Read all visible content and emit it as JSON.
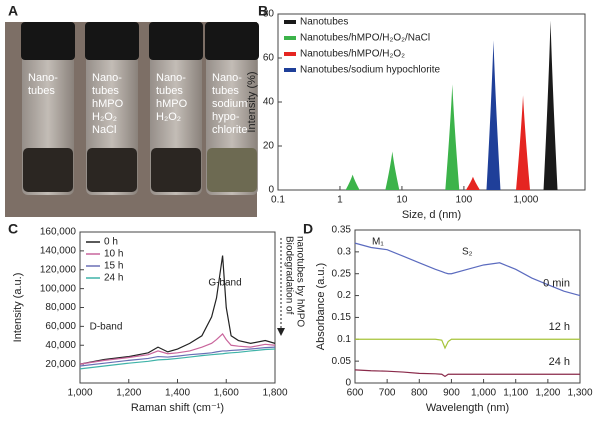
{
  "photo": {
    "panel_label": "A",
    "vials": [
      [
        "Nano-",
        "tubes"
      ],
      [
        "Nano-",
        "tubes",
        "hMPO",
        "H₂O₂",
        "NaCl"
      ],
      [
        "Nano-",
        "tubes",
        "hMPO",
        "H₂O₂"
      ],
      [
        "Nano-",
        "tubes",
        "sodium",
        "hypo-",
        "chlorite"
      ]
    ]
  },
  "chart_data": [
    {
      "type": "peaks",
      "panel_label": "B",
      "xlabel": "Size, d (nm)",
      "ylabel": "Intensity (%)",
      "xscale": "log",
      "xlim": [
        0.1,
        9000
      ],
      "ylim": [
        0,
        80
      ],
      "xticks": [
        0.1,
        1,
        10,
        100,
        {
          "value": 1000,
          "label": "1,000"
        }
      ],
      "yticks": [
        0,
        20,
        40,
        60,
        80
      ],
      "series": [
        {
          "name": "Nanotubes",
          "color": "#1a1a1a",
          "x": [
            2500
          ],
          "values": [
            77
          ]
        },
        {
          "name": "Nanotubes/hMPO/H₂O₂/NaCl",
          "color": "#3cb34a",
          "x": [
            1.6,
            7,
            65
          ],
          "values": [
            7,
            17.5,
            48
          ]
        },
        {
          "name": "Nanotubes/hMPO/H₂O₂",
          "color": "#e52521",
          "x": [
            140,
            900
          ],
          "values": [
            6,
            43
          ]
        },
        {
          "name": "Nanotubes/sodium hypochlorite",
          "color": "#1f3f99",
          "x": [
            300
          ],
          "values": [
            68
          ]
        }
      ]
    },
    {
      "type": "line",
      "panel_label": "C",
      "xlabel": "Raman shift (cm⁻¹)",
      "ylabel": "Intensity (a.u.)",
      "annotations": [
        "G-band",
        "D-band"
      ],
      "side_note": [
        "Biodegradation of",
        "nanotubes by hMPO"
      ],
      "xlim": [
        1000,
        1800
      ],
      "ylim": [
        0,
        160000
      ],
      "xticks": [
        {
          "value": 1000,
          "label": "1,000"
        },
        {
          "value": 1200,
          "label": "1,200"
        },
        {
          "value": 1400,
          "label": "1,400"
        },
        {
          "value": 1600,
          "label": "1,600"
        },
        {
          "value": 1800,
          "label": "1,800"
        }
      ],
      "yticks": [
        {
          "value": 20000,
          "label": "20,000"
        },
        {
          "value": 40000,
          "label": "40,000"
        },
        {
          "value": 60000,
          "label": "60,000"
        },
        {
          "value": 80000,
          "label": "80,000"
        },
        {
          "value": 100000,
          "label": "100,000"
        },
        {
          "value": 120000,
          "label": "120,000"
        },
        {
          "value": 140000,
          "label": "140,000"
        },
        {
          "value": 160000,
          "label": "160,000"
        }
      ],
      "x": [
        1000,
        1100,
        1200,
        1280,
        1320,
        1360,
        1400,
        1450,
        1500,
        1540,
        1560,
        1585,
        1600,
        1620,
        1650,
        1700,
        1760,
        1800
      ],
      "series": [
        {
          "name": "0 h",
          "color": "#222222",
          "values": [
            20000,
            25000,
            28000,
            32000,
            38000,
            33000,
            36000,
            42000,
            50000,
            70000,
            90000,
            135000,
            80000,
            50000,
            45000,
            42000,
            45000,
            42000
          ]
        },
        {
          "name": "10 h",
          "color": "#c9659c",
          "values": [
            20000,
            24000,
            27000,
            30000,
            34000,
            31000,
            32000,
            34000,
            38000,
            42000,
            46000,
            52000,
            46000,
            40000,
            39000,
            38000,
            41000,
            40000
          ]
        },
        {
          "name": "15 h",
          "color": "#6a6fb5",
          "values": [
            18000,
            21000,
            24000,
            26000,
            28000,
            27500,
            28500,
            30000,
            31000,
            32000,
            33000,
            34000,
            34000,
            34500,
            35000,
            36000,
            37500,
            38000
          ]
        },
        {
          "name": "24 h",
          "color": "#3fb3a8",
          "values": [
            15000,
            18000,
            21000,
            23000,
            24500,
            25000,
            26000,
            27500,
            29000,
            30000,
            30500,
            31000,
            31500,
            32000,
            32500,
            34000,
            35500,
            36000
          ]
        }
      ]
    },
    {
      "type": "line",
      "panel_label": "D",
      "xlabel": "Wavelength (nm)",
      "ylabel": "Absorbance (a.u.)",
      "annotations": [
        "M₁",
        "S₂"
      ],
      "xlim": [
        600,
        1300
      ],
      "ylim": [
        0,
        0.35
      ],
      "xticks": [
        600,
        700,
        800,
        900,
        {
          "value": 1000,
          "label": "1,000"
        },
        {
          "value": 1100,
          "label": "1,100"
        },
        {
          "value": 1200,
          "label": "1,200"
        },
        {
          "value": 1300,
          "label": "1,300"
        }
      ],
      "yticks": [
        0,
        0.05,
        0.1,
        0.15,
        0.2,
        0.25,
        0.3,
        0.35
      ],
      "x": [
        600,
        650,
        700,
        750,
        800,
        850,
        870,
        880,
        890,
        900,
        950,
        1000,
        1050,
        1100,
        1150,
        1200,
        1250,
        1300
      ],
      "series": [
        {
          "name": "0 min",
          "color": "#5b6bbf",
          "values": [
            0.32,
            0.31,
            0.305,
            0.29,
            0.275,
            0.26,
            0.255,
            0.252,
            0.25,
            0.25,
            0.26,
            0.27,
            0.275,
            0.26,
            0.24,
            0.225,
            0.21,
            0.2
          ]
        },
        {
          "name": "12 h",
          "color": "#a6c43a",
          "values": [
            0.1,
            0.1,
            0.1,
            0.1,
            0.1,
            0.1,
            0.098,
            0.08,
            0.095,
            0.1,
            0.1,
            0.1,
            0.1,
            0.1,
            0.1,
            0.1,
            0.1,
            0.1
          ]
        },
        {
          "name": "24 h",
          "color": "#8a2a4a",
          "values": [
            0.03,
            0.028,
            0.027,
            0.025,
            0.022,
            0.021,
            0.02,
            0.015,
            0.02,
            0.02,
            0.02,
            0.02,
            0.02,
            0.02,
            0.02,
            0.02,
            0.02,
            0.02
          ]
        }
      ]
    }
  ]
}
